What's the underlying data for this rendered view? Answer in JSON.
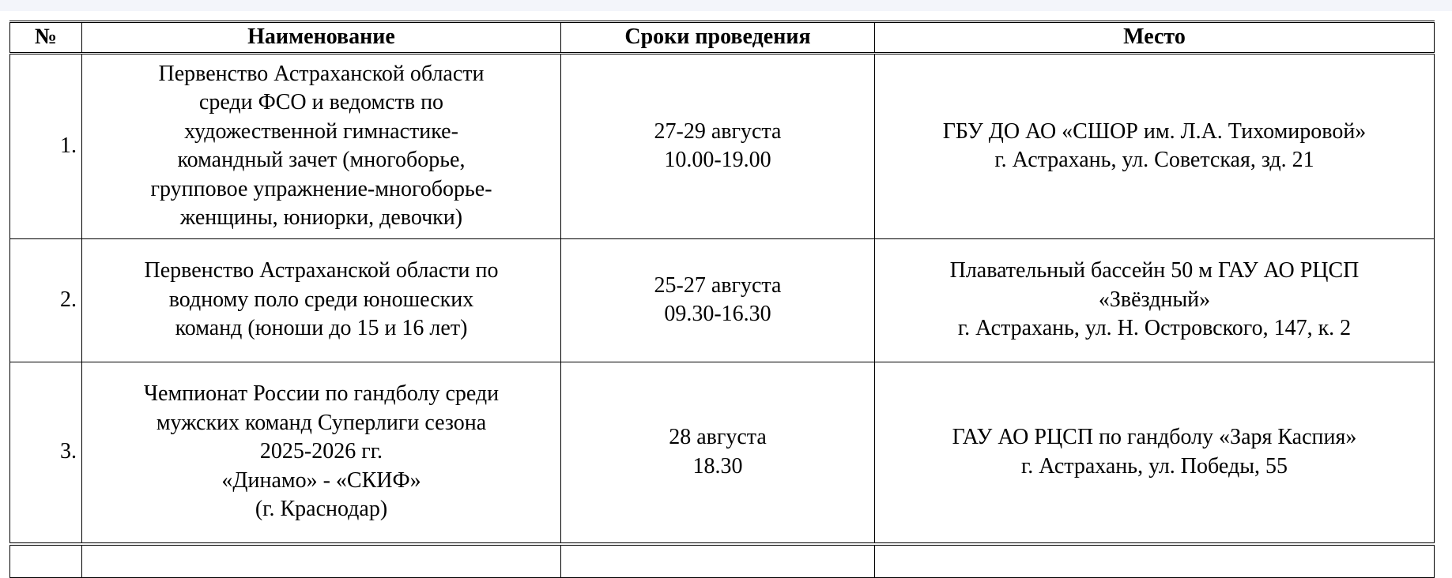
{
  "table": {
    "headers": [
      "№",
      "Наименование",
      "Сроки проведения",
      "Место"
    ],
    "rows": [
      {
        "num": "1.",
        "name": [
          "Первенство Астраханской области",
          "среди ФСО и ведомств по",
          "художественной гимнастике-",
          "командный зачет (многоборье,",
          "групповое упражнение-многоборье-",
          "женщины, юниорки, девочки)"
        ],
        "dates": [
          "27-29 августа",
          "10.00-19.00"
        ],
        "place": [
          "ГБУ ДО АО «СШОР им. Л.А. Тихомировой»",
          "г. Астрахань, ул. Советская, зд. 21"
        ]
      },
      {
        "num": "2.",
        "name": [
          "Первенство Астраханской области по",
          "водному поло среди юношеских",
          "команд (юноши до 15 и 16 лет)"
        ],
        "dates": [
          "25-27 августа",
          "09.30-16.30"
        ],
        "place": [
          "Плавательный бассейн 50 м ГАУ АО РЦСП",
          "«Звёздный»",
          "г. Астрахань, ул. Н. Островского, 147, к. 2"
        ]
      },
      {
        "num": "3.",
        "name": [
          "Чемпионат России по гандболу среди",
          "мужских команд Суперлиги сезона",
          "2025-2026 гг.",
          "«Динамо» - «СКИФ»",
          "(г. Краснодар)"
        ],
        "dates": [
          "28 августа",
          "18.30"
        ],
        "place": [
          "ГАУ АО РЦСП по гандболу «Заря Каспия»",
          "г. Астрахань, ул. Победы, 55"
        ]
      }
    ]
  }
}
